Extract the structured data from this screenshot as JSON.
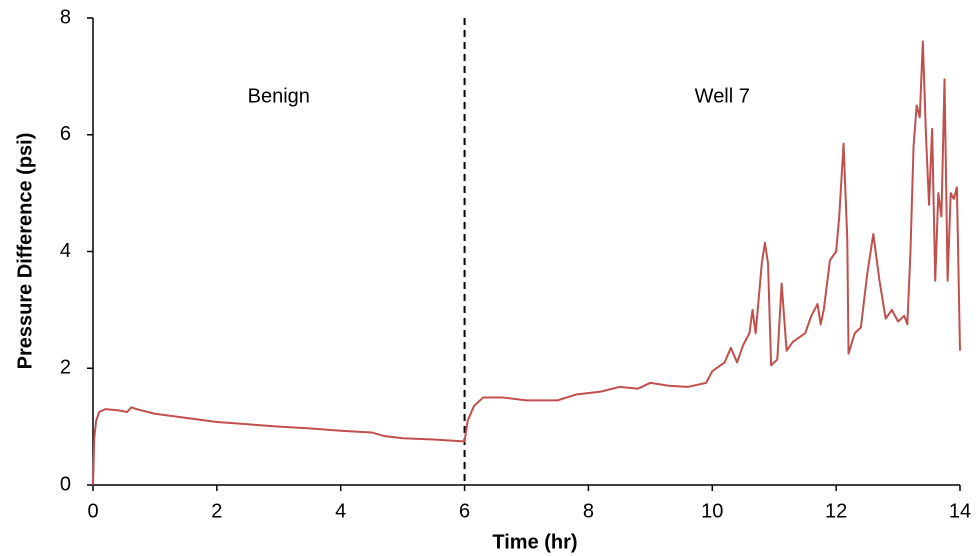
{
  "chart_data": {
    "type": "line",
    "xlabel": "Time (hr)",
    "ylabel": "Pressure Difference (psi)",
    "annotations": [
      "Benign",
      "Well 7"
    ],
    "vline": 6,
    "color": "#c0504d",
    "x": [
      0,
      0.02,
      0.05,
      0.1,
      0.2,
      0.4,
      0.55,
      0.62,
      0.7,
      1.0,
      1.5,
      2.0,
      2.5,
      3.0,
      3.5,
      4.0,
      4.5,
      4.7,
      5.0,
      5.5,
      5.95,
      6.0,
      6.05,
      6.15,
      6.3,
      6.6,
      7.0,
      7.5,
      7.8,
      8.2,
      8.5,
      8.8,
      9.0,
      9.3,
      9.6,
      9.9,
      10.0,
      10.2,
      10.3,
      10.4,
      10.5,
      10.6,
      10.65,
      10.7,
      10.8,
      10.85,
      10.9,
      10.95,
      11.05,
      11.12,
      11.2,
      11.3,
      11.5,
      11.6,
      11.7,
      11.75,
      11.8,
      11.9,
      12.0,
      12.05,
      12.12,
      12.18,
      12.2,
      12.3,
      12.4,
      12.5,
      12.6,
      12.7,
      12.8,
      12.9,
      13.0,
      13.1,
      13.15,
      13.2,
      13.25,
      13.3,
      13.35,
      13.4,
      13.45,
      13.5,
      13.55,
      13.6,
      13.65,
      13.7,
      13.75,
      13.8,
      13.85,
      13.9,
      13.95,
      14.0
    ],
    "values": [
      0,
      0.8,
      1.1,
      1.25,
      1.3,
      1.28,
      1.25,
      1.33,
      1.3,
      1.22,
      1.15,
      1.08,
      1.04,
      1.0,
      0.97,
      0.93,
      0.9,
      0.84,
      0.8,
      0.78,
      0.75,
      0.75,
      1.1,
      1.35,
      1.5,
      1.5,
      1.45,
      1.45,
      1.55,
      1.6,
      1.68,
      1.65,
      1.75,
      1.7,
      1.68,
      1.75,
      1.95,
      2.1,
      2.35,
      2.1,
      2.4,
      2.6,
      3.0,
      2.6,
      3.8,
      4.15,
      3.8,
      2.05,
      2.15,
      3.45,
      2.3,
      2.45,
      2.6,
      2.9,
      3.1,
      2.75,
      3.0,
      3.85,
      4.0,
      4.6,
      5.85,
      4.2,
      2.25,
      2.6,
      2.7,
      3.6,
      4.3,
      3.5,
      2.85,
      3.0,
      2.8,
      2.9,
      2.75,
      4.0,
      5.8,
      6.5,
      6.3,
      7.6,
      6.0,
      4.8,
      6.1,
      3.5,
      5.0,
      4.6,
      6.95,
      3.5,
      5.0,
      4.9,
      5.1,
      2.3
    ],
    "xlim": [
      0,
      14
    ],
    "xticks": [
      0,
      2,
      4,
      6,
      8,
      10,
      12,
      14
    ],
    "ylim": [
      0,
      8
    ],
    "yticks": [
      0,
      2,
      4,
      6,
      8
    ],
    "grid": false
  }
}
